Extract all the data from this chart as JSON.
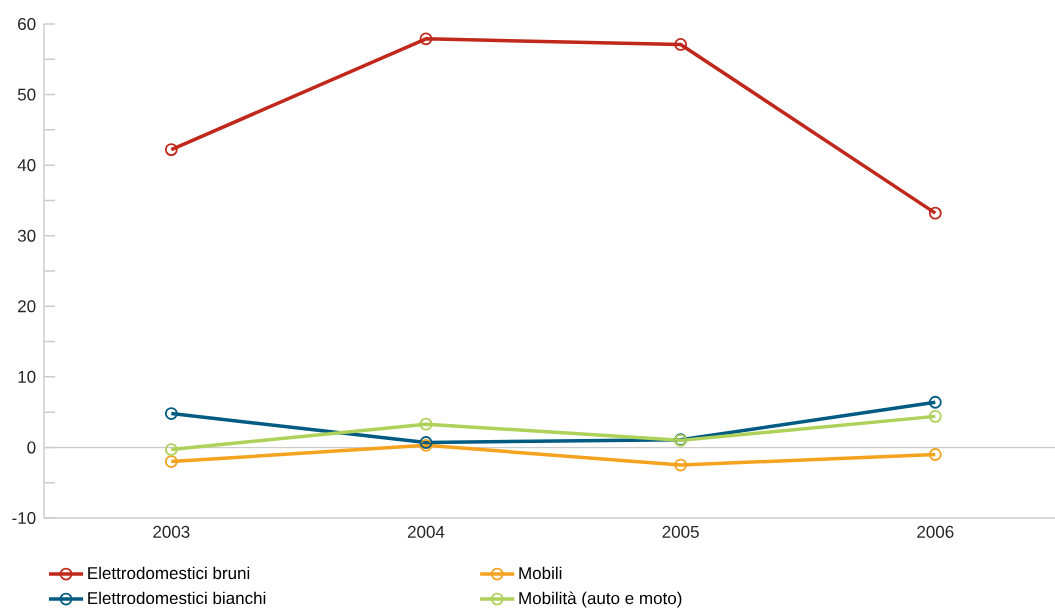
{
  "chart_data": {
    "type": "line",
    "categories": [
      "2003",
      "2004",
      "2005",
      "2006"
    ],
    "series": [
      {
        "name": "Elettrodomestici bruni",
        "color": "#c0281b",
        "values": [
          42.2,
          57.9,
          57.1,
          33.2
        ]
      },
      {
        "name": "Mobili",
        "color": "#f5a21f",
        "values": [
          -2.0,
          0.3,
          -2.5,
          -1.0
        ]
      },
      {
        "name": "Elettrodomestici bianchi",
        "color": "#005b82",
        "values": [
          4.8,
          0.7,
          1.1,
          6.4
        ]
      },
      {
        "name": "Mobilità (auto e moto)",
        "color": "#aed15a",
        "values": [
          -0.3,
          3.3,
          1.0,
          4.4
        ]
      }
    ],
    "ylim": [
      -10,
      60
    ],
    "yticks": [
      -10,
      {
        "value": -5,
        "label": null
      },
      0,
      {
        "value": 5,
        "label": null
      },
      10,
      {
        "value": 15,
        "label": null
      },
      20,
      {
        "value": 25,
        "label": null
      },
      30,
      {
        "value": 35,
        "label": null
      },
      40,
      {
        "value": 45,
        "label": null
      },
      50,
      {
        "value": 55,
        "label": null
      },
      60
    ],
    "ref_lines": [
      {
        "axis": "y",
        "value": 0,
        "color": "#cccccc"
      }
    ],
    "marker": "circle",
    "line_style": "solid",
    "legend": "bottom",
    "grid": false
  }
}
